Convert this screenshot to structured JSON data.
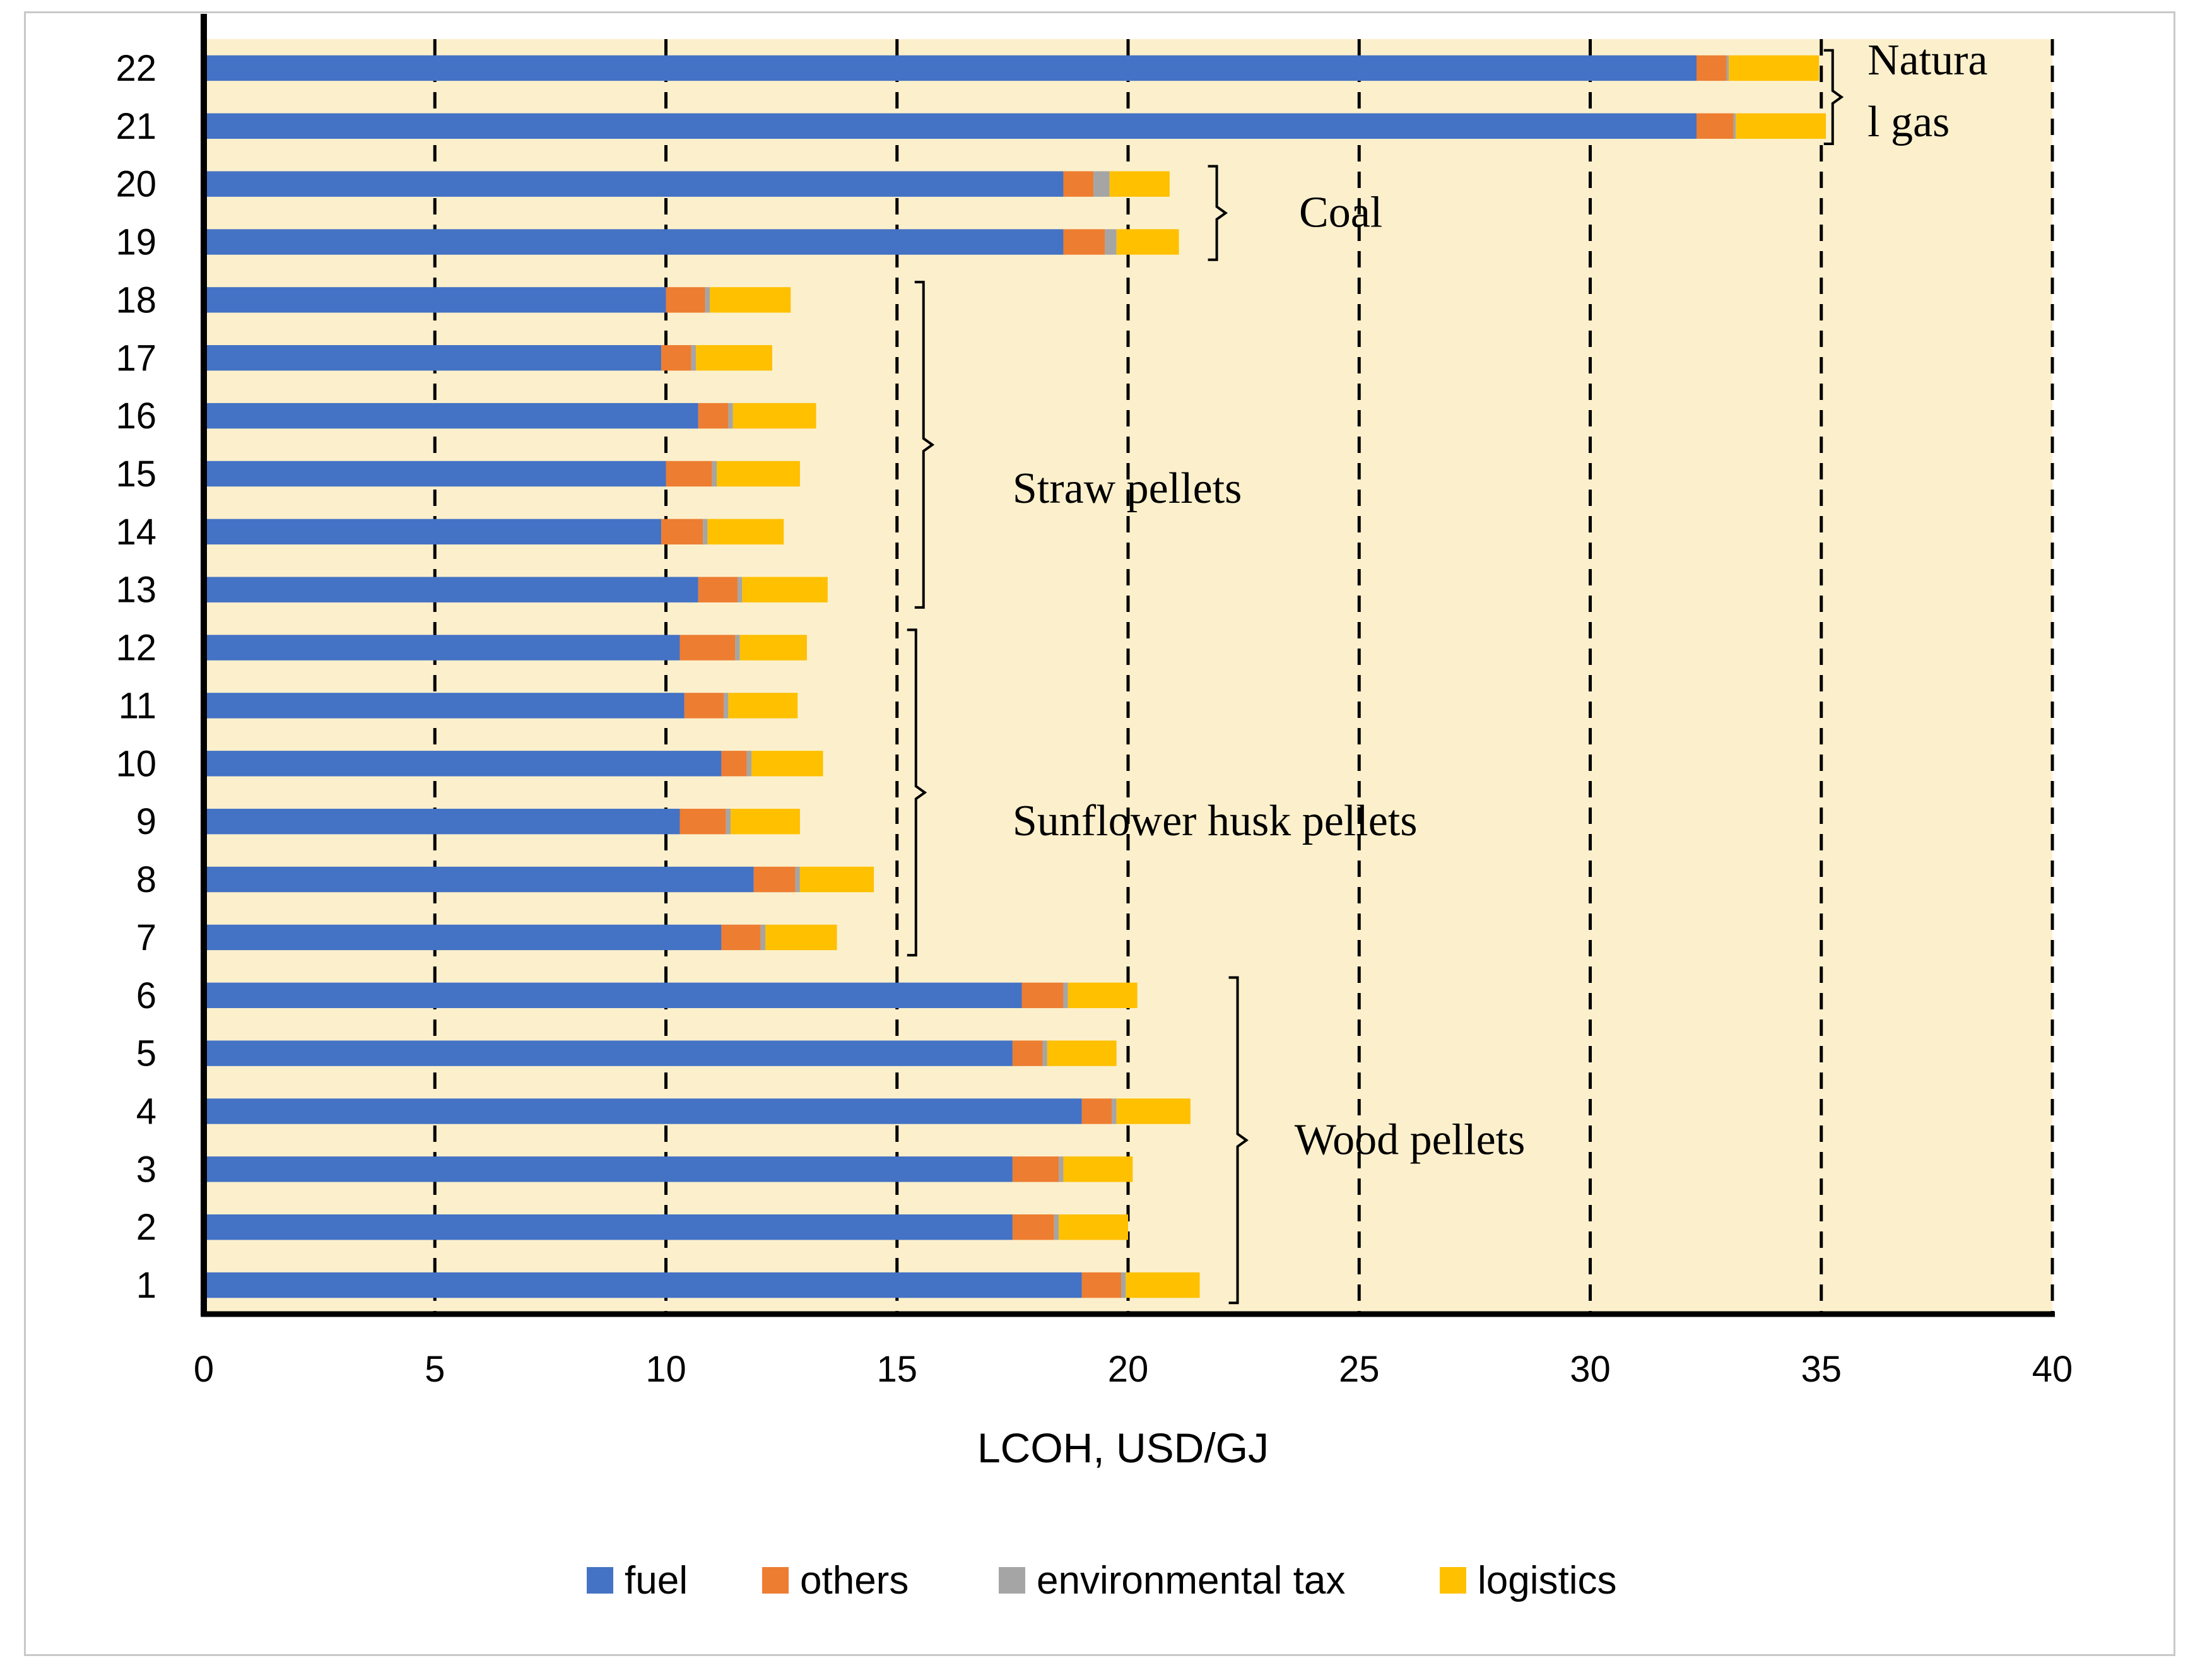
{
  "chart_data": {
    "type": "bar",
    "orientation": "horizontal",
    "stacked": true,
    "title": "",
    "xlabel": "LCOH, USD/GJ",
    "ylabel": "",
    "xlim": [
      0,
      40
    ],
    "xticks": [
      0,
      5,
      10,
      15,
      20,
      25,
      30,
      35,
      40
    ],
    "grid": "vertical dashed",
    "legend_position": "bottom",
    "categories": [
      "1",
      "2",
      "3",
      "4",
      "5",
      "6",
      "7",
      "8",
      "9",
      "10",
      "11",
      "12",
      "13",
      "14",
      "15",
      "16",
      "17",
      "18",
      "19",
      "20",
      "21",
      "22"
    ],
    "series": [
      {
        "name": "fuel",
        "color": "#4472C4",
        "values": [
          19.0,
          17.5,
          17.5,
          19.0,
          17.5,
          17.7,
          11.2,
          11.9,
          10.3,
          11.2,
          10.4,
          10.3,
          10.7,
          9.9,
          10.0,
          10.7,
          9.9,
          10.0,
          18.6,
          18.6,
          32.3,
          32.3
        ]
      },
      {
        "name": "others",
        "color": "#ED7D31",
        "values": [
          0.85,
          0.9,
          1.0,
          0.65,
          0.65,
          0.9,
          0.85,
          0.9,
          1.0,
          0.55,
          0.85,
          1.2,
          0.85,
          0.9,
          1.0,
          0.65,
          0.65,
          0.85,
          0.9,
          0.65,
          0.8,
          0.65
        ]
      },
      {
        "name": "environmental tax",
        "color": "#A5A5A5",
        "values": [
          0.1,
          0.1,
          0.1,
          0.1,
          0.1,
          0.1,
          0.1,
          0.1,
          0.1,
          0.1,
          0.1,
          0.1,
          0.1,
          0.1,
          0.1,
          0.1,
          0.1,
          0.1,
          0.25,
          0.35,
          0.05,
          0.05
        ]
      },
      {
        "name": "logistics",
        "color": "#FFC000",
        "values": [
          1.6,
          1.5,
          1.5,
          1.6,
          1.5,
          1.5,
          1.55,
          1.6,
          1.5,
          1.55,
          1.5,
          1.45,
          1.85,
          1.65,
          1.8,
          1.8,
          1.65,
          1.75,
          1.35,
          1.3,
          1.95,
          1.95
        ]
      }
    ],
    "groups": [
      {
        "label_lines": [
          "Wood pellets"
        ],
        "from": "1",
        "to": "6"
      },
      {
        "label_lines": [
          "Sunflower husk pellets"
        ],
        "from": "7",
        "to": "12"
      },
      {
        "label_lines": [
          "Straw pellets"
        ],
        "from": "13",
        "to": "18"
      },
      {
        "label_lines": [
          "Coal"
        ],
        "from": "19",
        "to": "20"
      },
      {
        "label_lines": [
          "Natura",
          "l gas"
        ],
        "from": "21",
        "to": "22"
      }
    ],
    "plot_background": "#FCF0CC"
  }
}
